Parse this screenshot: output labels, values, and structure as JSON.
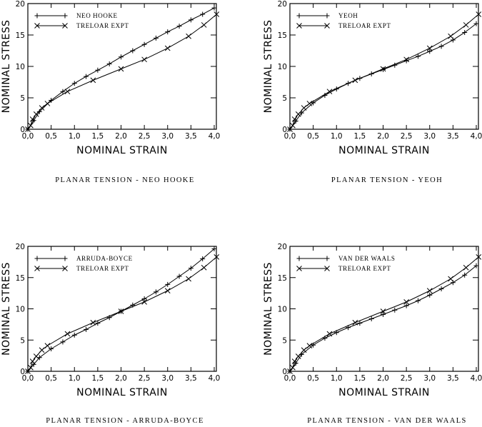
{
  "chart_data": [
    {
      "type": "line",
      "title": "PLANAR TENSION - NEO HOOKE",
      "xlabel": "NOMINAL STRAIN",
      "ylabel": "NOMINAL STRESS",
      "xlim": [
        0,
        4.0
      ],
      "ylim": [
        0,
        20
      ],
      "xticks": [
        "0,0",
        "0,5",
        "1,0",
        "1,5",
        "2,0",
        "2,5",
        "3,0",
        "3,5",
        "4,0"
      ],
      "yticks": [
        "0",
        "5",
        "10",
        "15",
        "20"
      ],
      "grid": false,
      "legend_position": "top-left",
      "series": [
        {
          "name": "NEO HOOKE",
          "marker": "plus",
          "x": [
            0,
            0.125,
            0.25,
            0.5,
            0.75,
            1.0,
            1.25,
            1.5,
            1.75,
            2.0,
            2.25,
            2.5,
            2.75,
            3.0,
            3.25,
            3.5,
            3.75,
            4.0
          ],
          "y": [
            0,
            1.4,
            2.8,
            4.6,
            6.0,
            7.3,
            8.4,
            9.4,
            10.4,
            11.5,
            12.5,
            13.5,
            14.5,
            15.5,
            16.4,
            17.4,
            18.3,
            19.3
          ]
        },
        {
          "name": "TRELOAR EXPT",
          "marker": "x",
          "x": [
            0,
            0.06,
            0.1,
            0.18,
            0.3,
            0.42,
            0.85,
            1.4,
            2.0,
            2.5,
            3.0,
            3.45,
            3.78,
            4.05
          ],
          "y": [
            0,
            0.6,
            1.6,
            2.4,
            3.4,
            4.1,
            6.0,
            7.8,
            9.6,
            11.1,
            12.9,
            14.8,
            16.6,
            18.3
          ]
        }
      ]
    },
    {
      "type": "line",
      "title": "PLANAR TENSION - YEOH",
      "xlabel": "NOMINAL STRAIN",
      "ylabel": "NOMINAL STRESS",
      "xlim": [
        0,
        4.0
      ],
      "ylim": [
        0,
        20
      ],
      "xticks": [
        "0,0",
        "0,5",
        "1,0",
        "1,5",
        "2,0",
        "2,5",
        "3,0",
        "3,5",
        "4,0"
      ],
      "yticks": [
        "0",
        "5",
        "10",
        "15",
        "20"
      ],
      "grid": false,
      "legend_position": "top-left",
      "series": [
        {
          "name": "YEOH",
          "marker": "plus",
          "x": [
            0,
            0.125,
            0.25,
            0.5,
            0.75,
            1.0,
            1.25,
            1.5,
            1.75,
            2.0,
            2.25,
            2.5,
            2.75,
            3.0,
            3.25,
            3.5,
            3.75,
            4.0
          ],
          "y": [
            0,
            1.3,
            2.6,
            4.2,
            5.4,
            6.4,
            7.3,
            8.1,
            8.8,
            9.5,
            10.2,
            10.9,
            11.6,
            12.4,
            13.2,
            14.2,
            15.4,
            16.8
          ]
        },
        {
          "name": "TRELOAR EXPT",
          "marker": "x",
          "x": [
            0,
            0.06,
            0.1,
            0.18,
            0.3,
            0.42,
            0.85,
            1.4,
            2.0,
            2.5,
            3.0,
            3.45,
            3.78,
            4.05
          ],
          "y": [
            0,
            0.6,
            1.6,
            2.4,
            3.4,
            4.1,
            6.0,
            7.8,
            9.6,
            11.1,
            12.9,
            14.8,
            16.6,
            18.3
          ]
        }
      ]
    },
    {
      "type": "line",
      "title": "PLANAR TENSION - ARRUDA-BOYCE",
      "xlabel": "NOMINAL STRAIN",
      "ylabel": "NOMINAL STRESS",
      "xlim": [
        0,
        4.0
      ],
      "ylim": [
        0,
        20
      ],
      "xticks": [
        "0,0",
        "0,5",
        "1,0",
        "1,5",
        "2,0",
        "2,5",
        "3,0",
        "3,5",
        "4,0"
      ],
      "yticks": [
        "0",
        "5",
        "10",
        "15",
        "20"
      ],
      "grid": false,
      "legend_position": "top-left",
      "series": [
        {
          "name": "ARRUDA-BOYCE",
          "marker": "plus",
          "x": [
            0,
            0.125,
            0.25,
            0.5,
            0.75,
            1.0,
            1.25,
            1.5,
            1.75,
            2.0,
            2.25,
            2.5,
            2.75,
            3.0,
            3.25,
            3.5,
            3.75,
            4.0
          ],
          "y": [
            0,
            1.1,
            2.2,
            3.6,
            4.7,
            5.8,
            6.7,
            7.7,
            8.6,
            9.6,
            10.6,
            11.6,
            12.7,
            13.9,
            15.2,
            16.5,
            18.0,
            19.6
          ]
        },
        {
          "name": "TRELOAR EXPT",
          "marker": "x",
          "x": [
            0,
            0.06,
            0.1,
            0.18,
            0.3,
            0.42,
            0.85,
            1.4,
            2.0,
            2.5,
            3.0,
            3.45,
            3.78,
            4.05
          ],
          "y": [
            0,
            0.6,
            1.6,
            2.4,
            3.4,
            4.1,
            6.0,
            7.8,
            9.6,
            11.1,
            12.9,
            14.8,
            16.6,
            18.3
          ]
        }
      ]
    },
    {
      "type": "line",
      "title": "PLANAR TENSION - VAN DER WAALS",
      "xlabel": "NOMINAL STRAIN",
      "ylabel": "NOMINAL STRESS",
      "xlim": [
        0,
        4.0
      ],
      "ylim": [
        0,
        20
      ],
      "xticks": [
        "0,0",
        "0,5",
        "1,0",
        "1,5",
        "2,0",
        "2,5",
        "3,0",
        "3,5",
        "4,0"
      ],
      "yticks": [
        "0",
        "5",
        "10",
        "15",
        "20"
      ],
      "grid": false,
      "legend_position": "top-left",
      "series": [
        {
          "name": "VAN DER WAALS",
          "marker": "plus",
          "x": [
            0,
            0.125,
            0.25,
            0.5,
            0.75,
            1.0,
            1.25,
            1.5,
            1.75,
            2.0,
            2.25,
            2.5,
            2.75,
            3.0,
            3.25,
            3.5,
            3.75,
            4.0
          ],
          "y": [
            0,
            1.3,
            2.7,
            4.2,
            5.3,
            6.2,
            7.0,
            7.7,
            8.4,
            9.1,
            9.8,
            10.5,
            11.3,
            12.2,
            13.2,
            14.2,
            15.4,
            16.9
          ]
        },
        {
          "name": "TRELOAR EXPT",
          "marker": "x",
          "x": [
            0,
            0.06,
            0.1,
            0.18,
            0.3,
            0.42,
            0.85,
            1.4,
            2.0,
            2.5,
            3.0,
            3.45,
            3.78,
            4.05
          ],
          "y": [
            0,
            0.6,
            1.6,
            2.4,
            3.4,
            4.1,
            6.0,
            7.8,
            9.6,
            11.1,
            12.9,
            14.8,
            16.6,
            18.3
          ]
        }
      ]
    }
  ]
}
